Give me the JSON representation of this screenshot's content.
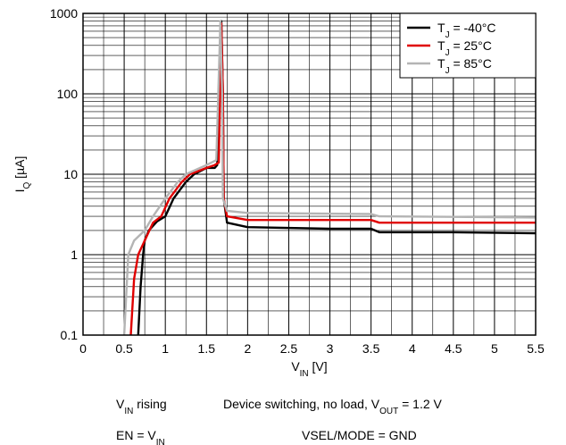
{
  "chart_data": {
    "type": "line",
    "x_label": [
      "V",
      "IN",
      " [V]"
    ],
    "y_label": [
      "I",
      "Q",
      " [µA]"
    ],
    "log_y": true,
    "grid": true,
    "xlim": [
      0,
      5.5
    ],
    "ylim": [
      0.1,
      1000
    ],
    "xticks": [
      0,
      0.5,
      1,
      1.5,
      2,
      2.5,
      3,
      3.5,
      4,
      4.5,
      5,
      5.5
    ],
    "x_minor_ticks": [
      0.25,
      0.75,
      1.25,
      1.75,
      2.25,
      2.75,
      3.25,
      3.75,
      4.25,
      4.75,
      5.25
    ],
    "yticks": [
      0.1,
      1,
      10,
      100,
      1000
    ],
    "legend": "upper right",
    "series": [
      {
        "name": [
          "T",
          "J",
          " = -40°C"
        ],
        "color": "#000000",
        "x": [
          0.67,
          0.7,
          0.73,
          0.75,
          0.8,
          0.9,
          1.0,
          1.1,
          1.25,
          1.35,
          1.5,
          1.6,
          1.63,
          1.68,
          1.7,
          1.71,
          1.75,
          2.0,
          3.0,
          3.5,
          3.6,
          4.5,
          5.5
        ],
        "values": [
          0.1,
          0.4,
          1,
          1.5,
          2,
          2.6,
          3,
          5,
          8,
          10,
          12,
          12,
          13,
          800,
          100,
          5,
          2.5,
          2.2,
          2.1,
          2.1,
          1.9,
          1.9,
          1.85
        ]
      },
      {
        "name": [
          "T",
          "J",
          " = 25°C"
        ],
        "color": "#e00000",
        "x": [
          0.58,
          0.62,
          0.67,
          0.75,
          0.85,
          0.95,
          1.05,
          1.2,
          1.3,
          1.5,
          1.6,
          1.65,
          1.68,
          1.7,
          1.71,
          1.75,
          2.0,
          3.5,
          3.6,
          5.5
        ],
        "values": [
          0.1,
          0.5,
          1,
          1.5,
          2.5,
          3,
          5,
          8,
          10,
          12,
          13,
          14,
          750,
          100,
          5,
          3,
          2.7,
          2.7,
          2.5,
          2.5
        ]
      },
      {
        "name": [
          "T",
          "J",
          " = 85°C"
        ],
        "color": "#b4b4b4",
        "x": [
          0.5,
          0.55,
          0.62,
          0.75,
          0.85,
          1.0,
          1.15,
          1.25,
          1.5,
          1.62,
          1.67,
          1.69,
          1.7,
          1.75,
          2.0,
          3.5,
          3.6,
          5.5
        ],
        "values": [
          0.1,
          1,
          1.5,
          2,
          3,
          5,
          8,
          10,
          13,
          15,
          800,
          100,
          5,
          3.5,
          3.3,
          3.2,
          3.0,
          2.9
        ]
      }
    ],
    "annotations": [
      [
        "V",
        "IN",
        " rising"
      ],
      [
        "Device switching, no load, V",
        "OUT",
        " = 1.2 V"
      ],
      [
        "EN = V",
        "IN"
      ],
      [
        "VSEL/MODE = GND"
      ]
    ]
  }
}
